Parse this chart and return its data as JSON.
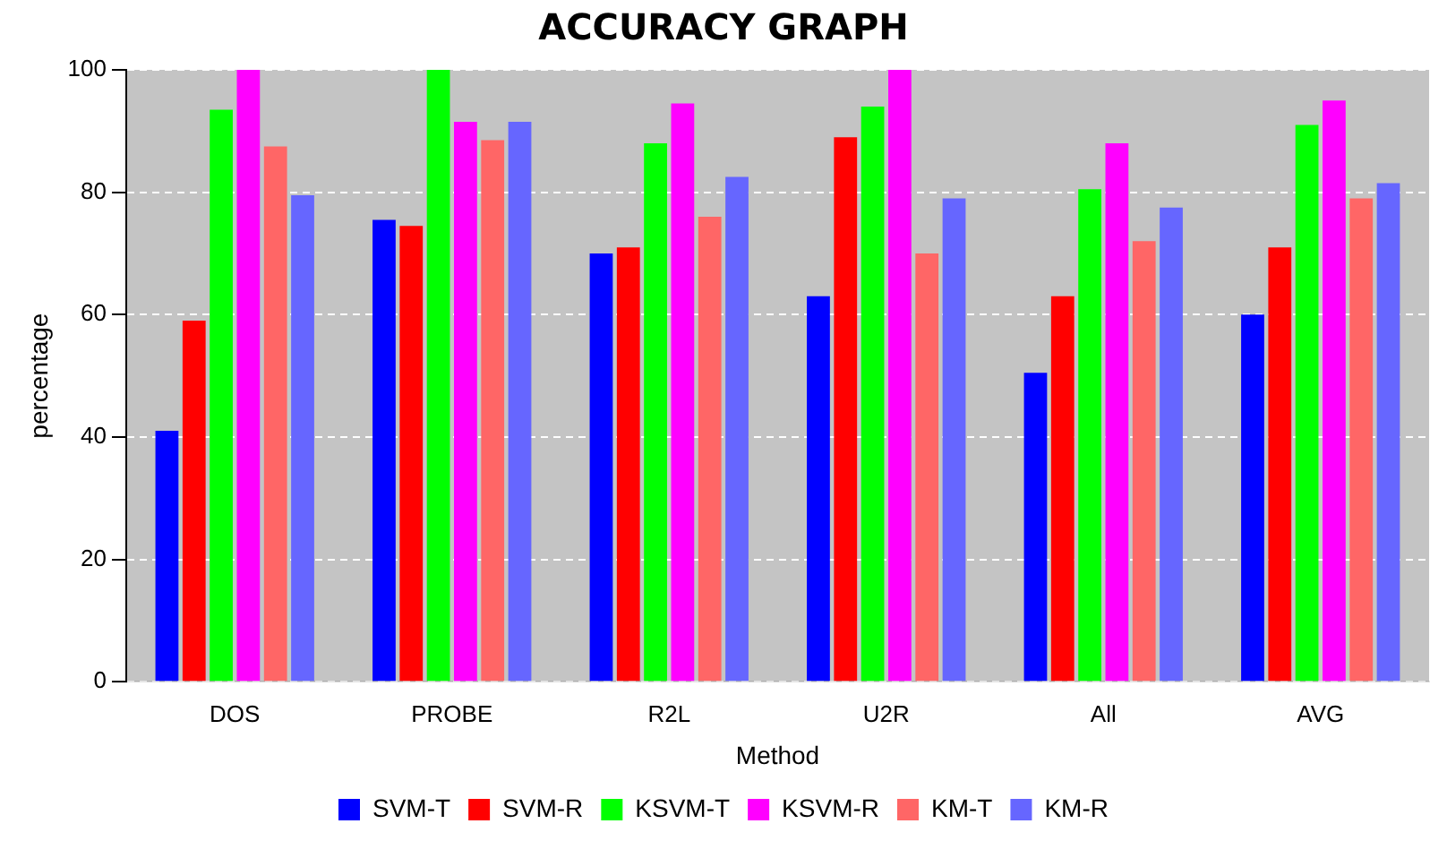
{
  "chart_data": {
    "type": "bar",
    "title": "ACCURACY GRAPH",
    "xlabel": "Method",
    "ylabel": "percentage",
    "categories": [
      "DOS",
      "PROBE",
      "R2L",
      "U2R",
      "All",
      "AVG"
    ],
    "series": [
      {
        "name": "SVM-T",
        "color": "#0000ff",
        "values": [
          41,
          75.5,
          70,
          63,
          50.5,
          60
        ]
      },
      {
        "name": "SVM-R",
        "color": "#ff0000",
        "values": [
          59,
          74.5,
          71,
          89,
          63,
          71
        ]
      },
      {
        "name": "KSVM-T",
        "color": "#00ff00",
        "values": [
          93.5,
          100,
          88,
          94,
          80.5,
          91
        ]
      },
      {
        "name": "KSVM-R",
        "color": "#ff00ff",
        "values": [
          100,
          91.5,
          94.5,
          100,
          88,
          95
        ]
      },
      {
        "name": "KM-T",
        "color": "#ff6666",
        "values": [
          87.5,
          88.5,
          76,
          70,
          72,
          79
        ]
      },
      {
        "name": "KM-R",
        "color": "#6666ff",
        "values": [
          79.5,
          91.5,
          82.5,
          79,
          77.5,
          81.5
        ]
      }
    ],
    "ylim": [
      0,
      100
    ],
    "yticks": [
      0,
      20,
      40,
      60,
      80,
      100
    ],
    "grid": "y",
    "legend": "bottom"
  }
}
